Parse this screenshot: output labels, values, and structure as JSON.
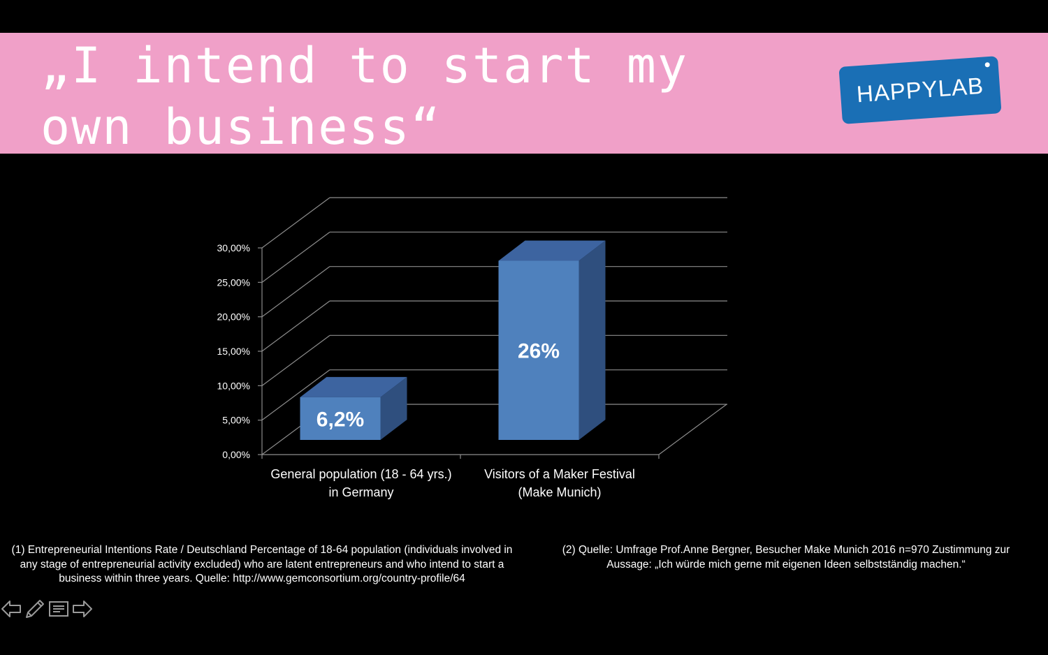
{
  "slide": {
    "title": "„I intend to start my own business“",
    "logo_text": "HAPPYLAB",
    "footnote_1": "(1) Entrepreneurial Intentions Rate / Deutschland Percentage of 18-64 population (individuals involved in any stage of entrepreneurial activity excluded) who are latent entrepreneurs and who intend to start a business within three years. Quelle: http://www.gemconsortium.org/country-profile/64",
    "footnote_2": "(2) Quelle: Umfrage Prof.Anne Bergner, Besucher Make Munich 2016 n=970 Zustimmung zur Aussage: „Ich würde mich gerne mit eigenen Ideen selbstständig machen.“"
  },
  "colors": {
    "banner": "#f0a0c8",
    "logo_bg": "#1a6fb5",
    "bar_front": "#4f81bd",
    "bar_top": "#3d64a0",
    "bar_side": "#2f4f7e",
    "grid": "#8c8c8c"
  },
  "nav_icons": [
    "arrow-left-icon",
    "pen-icon",
    "notes-icon",
    "arrow-right-icon"
  ],
  "chart_data": {
    "type": "bar",
    "style": "3d-column",
    "categories": [
      "General population (18 - 64 yrs.) in Germany",
      "Visitors of a Maker Festival (Make Munich)"
    ],
    "category_lines": [
      [
        "General population (18 - 64 yrs.)",
        "in Germany"
      ],
      [
        "Visitors of a Maker Festival",
        "(Make Munich)"
      ]
    ],
    "values": [
      6.2,
      26
    ],
    "data_labels": [
      "6,2%",
      "26%"
    ],
    "yticks": [
      "0,00%",
      "5,00%",
      "10,00%",
      "15,00%",
      "20,00%",
      "25,00%",
      "30,00%"
    ],
    "ylim": [
      0,
      30
    ],
    "grid": true,
    "legend": "none",
    "title": "",
    "xlabel": "",
    "ylabel": ""
  }
}
